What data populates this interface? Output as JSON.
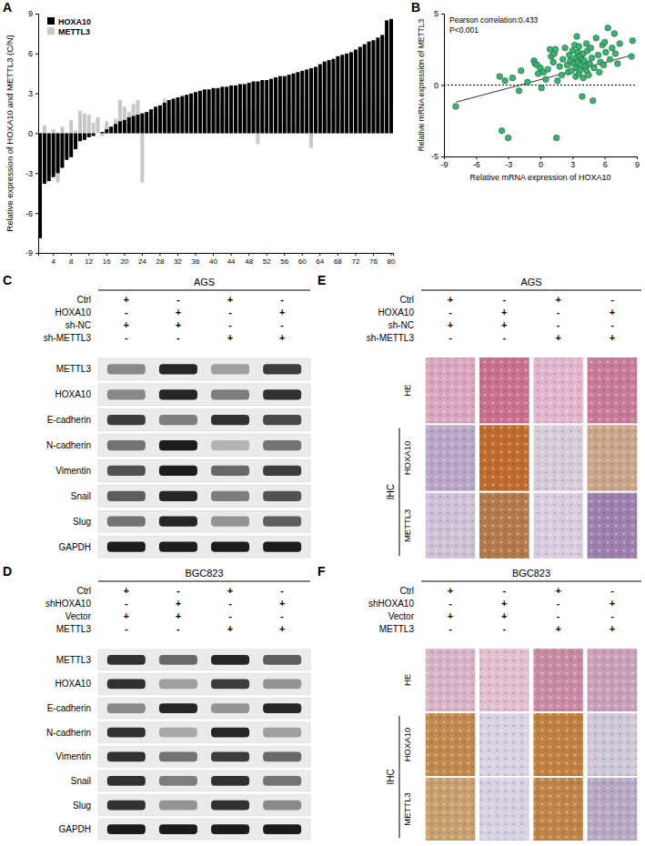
{
  "chart_data": [
    {
      "panel": "A",
      "type": "bar",
      "categories": [
        null,
        null,
        null,
        "4",
        null,
        null,
        null,
        "8",
        null,
        null,
        null,
        "12",
        null,
        null,
        null,
        "16",
        null,
        null,
        null,
        "20",
        null,
        null,
        null,
        "24",
        null,
        null,
        null,
        "28",
        null,
        null,
        null,
        "32",
        null,
        null,
        null,
        "36",
        null,
        null,
        null,
        "40",
        null,
        null,
        null,
        "44",
        null,
        null,
        null,
        "48",
        null,
        null,
        null,
        "52",
        null,
        null,
        null,
        "56",
        null,
        null,
        null,
        "60",
        null,
        null,
        null,
        "64",
        null,
        null,
        null,
        "68",
        null,
        null,
        null,
        "72",
        null,
        null,
        null,
        "76",
        null,
        null,
        null,
        "80"
      ],
      "series": [
        {
          "name": "HOXA10",
          "color": "#000000",
          "values": [
            -7.9,
            -3.8,
            -3.6,
            -3.3,
            -3.0,
            -2.6,
            -2.0,
            -1.8,
            -1.2,
            -0.6,
            -0.5,
            -0.3,
            -0.2,
            0,
            0.1,
            0.3,
            0.5,
            0.7,
            0.9,
            1.0,
            1.2,
            1.3,
            1.4,
            1.5,
            1.6,
            1.8,
            2.0,
            2.1,
            2.3,
            2.5,
            2.6,
            2.7,
            2.8,
            2.9,
            3.0,
            3.1,
            3.2,
            3.3,
            3.3,
            3.4,
            3.4,
            3.5,
            3.5,
            3.6,
            3.6,
            3.7,
            3.7,
            3.8,
            3.9,
            3.9,
            4.0,
            4.0,
            4.1,
            4.2,
            4.3,
            4.3,
            4.4,
            4.5,
            4.6,
            4.7,
            4.8,
            4.9,
            5.0,
            5.2,
            5.4,
            5.5,
            5.6,
            5.8,
            5.9,
            6.0,
            6.1,
            6.3,
            6.5,
            6.7,
            6.9,
            7.0,
            7.2,
            7.4,
            8.5,
            8.6
          ]
        },
        {
          "name": "METTL3",
          "color": "#c8c8c8",
          "values": [
            -1.5,
            0.6,
            -3.2,
            0.3,
            -3.7,
            0.5,
            -0.4,
            1.0,
            0.2,
            1.7,
            1.5,
            1.4,
            0.8,
            1.2,
            -0.2,
            0.9,
            0.4,
            1.1,
            2.5,
            2.0,
            1.6,
            2.2,
            2.5,
            -3.7,
            0.3,
            1.3,
            0.7,
            1.8,
            2.6,
            1.4,
            0.9,
            2.1,
            1.7,
            1.0,
            2.4,
            1.5,
            2.8,
            1.9,
            0.6,
            3.4,
            1.2,
            2.3,
            1.6,
            0.8,
            2.7,
            1.1,
            2.0,
            1.4,
            1.8,
            -0.8,
            2.2,
            0.5,
            1.7,
            1.3,
            2.9,
            1.0,
            2.4,
            0.7,
            1.5,
            2.6,
            1.9,
            -1.1,
            1.2,
            3.3,
            2.1,
            0.9,
            1.6,
            2.8,
            1.4,
            3.0,
            2.3,
            4.0,
            1.8,
            2.6,
            3.6,
            2.2,
            1.5,
            2.9,
            2.0,
            3.1
          ]
        }
      ],
      "ylim": [
        -9,
        9
      ],
      "yticks": [
        -9,
        -6,
        -3,
        0,
        3,
        6,
        9
      ],
      "ylabel": "Relative expression of HOXA10 and METTL3 (C/N)",
      "legend": "upper left"
    },
    {
      "panel": "B",
      "type": "scatter",
      "x": [
        -7.9,
        -3.8,
        -3.6,
        -3.3,
        -3.0,
        -2.6,
        -2.0,
        -1.8,
        -1.2,
        -0.6,
        -0.5,
        -0.3,
        -0.2,
        0,
        0.1,
        0.3,
        0.5,
        0.7,
        0.9,
        1.0,
        1.2,
        1.3,
        1.4,
        1.5,
        1.6,
        1.8,
        2.0,
        2.1,
        2.3,
        2.5,
        2.6,
        2.7,
        2.8,
        2.9,
        3.0,
        3.1,
        3.2,
        3.3,
        3.3,
        3.4,
        3.4,
        3.5,
        3.5,
        3.6,
        3.6,
        3.7,
        3.7,
        3.8,
        3.9,
        3.9,
        4.0,
        4.0,
        4.1,
        4.2,
        4.3,
        4.3,
        4.4,
        4.5,
        4.6,
        4.7,
        4.8,
        4.9,
        5.0,
        5.2,
        5.4,
        5.5,
        5.6,
        5.8,
        5.9,
        6.0,
        6.1,
        6.3,
        6.5,
        6.7,
        6.9,
        7.0,
        7.2,
        7.4,
        8.5,
        8.6
      ],
      "values": [
        -1.5,
        0.6,
        -3.2,
        0.3,
        -3.7,
        0.5,
        -0.4,
        1.0,
        0.2,
        1.7,
        1.5,
        1.4,
        0.8,
        1.2,
        -0.2,
        0.9,
        0.4,
        1.1,
        2.5,
        2.0,
        1.6,
        2.2,
        2.5,
        -3.7,
        0.3,
        1.3,
        0.7,
        1.8,
        2.6,
        1.4,
        0.9,
        2.1,
        1.7,
        1.0,
        2.4,
        1.5,
        2.8,
        1.9,
        0.6,
        3.4,
        1.2,
        2.3,
        1.6,
        0.8,
        2.7,
        1.1,
        2.0,
        1.4,
        1.8,
        -0.8,
        2.2,
        0.5,
        1.7,
        1.3,
        2.9,
        1.0,
        2.4,
        0.7,
        1.5,
        2.6,
        1.9,
        -1.1,
        1.2,
        3.3,
        2.1,
        0.9,
        1.6,
        2.8,
        1.4,
        3.0,
        2.3,
        4.0,
        1.8,
        2.6,
        3.6,
        2.2,
        1.5,
        2.9,
        2.0,
        3.1
      ],
      "color": "#3cb371",
      "marker": "circle",
      "xlim": [
        -9,
        9
      ],
      "xticks": [
        -9,
        -6,
        -3,
        0,
        3,
        6,
        9
      ],
      "ylim": [
        -5,
        5
      ],
      "yticks": [
        -5,
        0,
        5
      ],
      "xlabel": "Relative mRNA expression of HOXA10",
      "ylabel": "Relative mRNA expression of METTL3",
      "annotations": [
        "Pearson correlation:0.433",
        "P<0.001"
      ],
      "fit_line": {
        "x": [
          -7.9,
          8.6
        ],
        "values": [
          -1.2,
          2.1
        ]
      },
      "reference_line": 0
    }
  ],
  "blots": [
    {
      "panel": "C",
      "cell_line": "AGS",
      "conditions": [
        {
          "label": "Ctrl",
          "values": [
            "+",
            "-",
            "+",
            "-"
          ]
        },
        {
          "label": "HOXA10",
          "values": [
            "-",
            "+",
            "-",
            "+"
          ]
        },
        {
          "label": "sh-NC",
          "values": [
            "+",
            "+",
            "-",
            "-"
          ]
        },
        {
          "label": "sh-METTL3",
          "values": [
            "-",
            "-",
            "+",
            "+"
          ]
        }
      ],
      "proteins": [
        {
          "label": "METTL3",
          "intensity": [
            0.45,
            0.9,
            0.35,
            0.8
          ]
        },
        {
          "label": "HOXA10",
          "intensity": [
            0.45,
            0.9,
            0.5,
            0.85
          ]
        },
        {
          "label": "E-cadherin",
          "intensity": [
            0.8,
            0.5,
            0.85,
            0.75
          ]
        },
        {
          "label": "N-cadherin",
          "intensity": [
            0.55,
            0.95,
            0.25,
            0.55
          ]
        },
        {
          "label": "Vimentin",
          "intensity": [
            0.7,
            0.95,
            0.6,
            0.8
          ]
        },
        {
          "label": "Snail",
          "intensity": [
            0.65,
            0.9,
            0.5,
            0.7
          ]
        },
        {
          "label": "Slug",
          "intensity": [
            0.55,
            0.9,
            0.4,
            0.65
          ]
        },
        {
          "label": "GAPDH",
          "intensity": [
            0.95,
            0.95,
            0.95,
            0.95
          ]
        }
      ]
    },
    {
      "panel": "D",
      "cell_line": "BGC823",
      "conditions": [
        {
          "label": "Ctrl",
          "values": [
            "+",
            "-",
            "+",
            "-"
          ]
        },
        {
          "label": "shHOXA10",
          "values": [
            "-",
            "+",
            "-",
            "+"
          ]
        },
        {
          "label": "Vector",
          "values": [
            "+",
            "+",
            "-",
            "-"
          ]
        },
        {
          "label": "METTL3",
          "values": [
            "-",
            "-",
            "+",
            "+"
          ]
        }
      ],
      "proteins": [
        {
          "label": "METTL3",
          "intensity": [
            0.85,
            0.6,
            0.9,
            0.65
          ]
        },
        {
          "label": "HOXA10",
          "intensity": [
            0.85,
            0.35,
            0.8,
            0.4
          ]
        },
        {
          "label": "E-cadherin",
          "intensity": [
            0.45,
            0.9,
            0.4,
            0.9
          ]
        },
        {
          "label": "N-cadherin",
          "intensity": [
            0.85,
            0.3,
            0.9,
            0.35
          ]
        },
        {
          "label": "Vimentin",
          "intensity": [
            0.85,
            0.55,
            0.8,
            0.6
          ]
        },
        {
          "label": "Snail",
          "intensity": [
            0.85,
            0.5,
            0.85,
            0.55
          ]
        },
        {
          "label": "Slug",
          "intensity": [
            0.85,
            0.4,
            0.85,
            0.45
          ]
        },
        {
          "label": "GAPDH",
          "intensity": [
            0.95,
            0.95,
            0.95,
            0.95
          ]
        }
      ]
    }
  ],
  "histology": [
    {
      "panel": "E",
      "cell_line": "AGS",
      "conditions": [
        {
          "label": "Ctrl",
          "values": [
            "+",
            "-",
            "+",
            "-"
          ]
        },
        {
          "label": "HOXA10",
          "values": [
            "-",
            "+",
            "-",
            "+"
          ]
        },
        {
          "label": "sh-NC",
          "values": [
            "+",
            "+",
            "-",
            "-"
          ]
        },
        {
          "label": "sh-METTL3",
          "values": [
            "-",
            "-",
            "+",
            "+"
          ]
        }
      ],
      "he": {
        "label": "HE",
        "colors": [
          "#d9a7c0",
          "#c9708f",
          "#e1b5cc",
          "#c87a9a"
        ]
      },
      "ihc": {
        "label": "IHC",
        "rows": [
          {
            "label": "HOXA10",
            "colors": [
              "#b9a6c8",
              "#c06a2e",
              "#d8cbd8",
              "#c9a58a"
            ]
          },
          {
            "label": "METTL3",
            "colors": [
              "#cfc2d6",
              "#b27a4a",
              "#d9cde0",
              "#9d7fb0"
            ]
          }
        ]
      }
    },
    {
      "panel": "F",
      "cell_line": "BGC823",
      "conditions": [
        {
          "label": "Ctrl",
          "values": [
            "+",
            "-",
            "+",
            "-"
          ]
        },
        {
          "label": "shHOXA10",
          "values": [
            "-",
            "+",
            "-",
            "+"
          ]
        },
        {
          "label": "Vector",
          "values": [
            "+",
            "+",
            "-",
            "-"
          ]
        },
        {
          "label": "METTL3",
          "values": [
            "-",
            "-",
            "+",
            "+"
          ]
        }
      ],
      "he": {
        "label": "HE",
        "colors": [
          "#d9b3c8",
          "#e1bfd0",
          "#c98aa6",
          "#caa0b9"
        ]
      },
      "ihc": {
        "label": "IHC",
        "rows": [
          {
            "label": "HOXA10",
            "colors": [
              "#c0894e",
              "#d8d2e2",
              "#c08040",
              "#cfc6d8"
            ]
          },
          {
            "label": "METTL3",
            "colors": [
              "#c8a06e",
              "#d6d0e0",
              "#c08448",
              "#b7a8c4"
            ]
          }
        ]
      }
    }
  ]
}
